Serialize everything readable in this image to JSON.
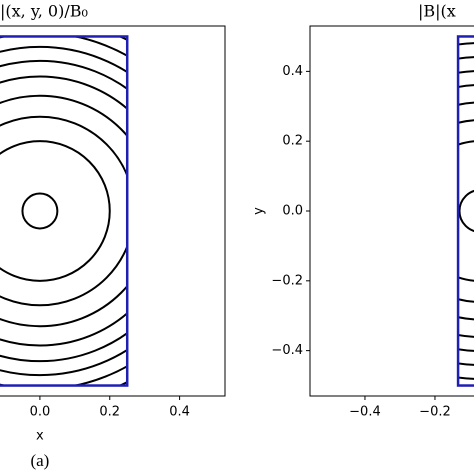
{
  "chart_data": [
    {
      "type": "contour",
      "title": "|(x, y, 0)/B₀",
      "xlabel": "x",
      "caption": "(a)",
      "xlim": [
        -0.12,
        0.53
      ],
      "ylim": [
        -0.53,
        0.53
      ],
      "xticks": [
        {
          "value": 0,
          "label": "0.0"
        },
        {
          "value": 0.2,
          "label": "0.2"
        },
        {
          "value": 0.4,
          "label": "0.4"
        }
      ],
      "region": {
        "x": [
          -0.25,
          0.25
        ],
        "y": [
          -0.5,
          0.5
        ],
        "color": "#1f1fb4"
      },
      "center": [
        0,
        0
      ],
      "radii": [
        0.05,
        0.2,
        0.27,
        0.33,
        0.385,
        0.43,
        0.47,
        0.51,
        0.55,
        0.59,
        0.63
      ],
      "color": "#000000"
    },
    {
      "type": "contour",
      "title": "|B|(x",
      "ylabel": "y",
      "xlim": [
        -0.557,
        0.5
      ],
      "ylim": [
        -0.53,
        0.53
      ],
      "xticks": [
        {
          "value": -0.4,
          "label": "−0.4"
        },
        {
          "value": -0.2,
          "label": "−0.2"
        }
      ],
      "yticks": [
        {
          "value": 0.4,
          "label": "0.4"
        },
        {
          "value": 0.2,
          "label": "0.2"
        },
        {
          "value": 0,
          "label": "0.0"
        },
        {
          "value": -0.2,
          "label": "−0.2"
        },
        {
          "value": -0.4,
          "label": "−0.4"
        }
      ],
      "region": {
        "x": [
          -0.134,
          0.134
        ],
        "y": [
          -0.5,
          0.5
        ],
        "color": "#1f1fb4"
      },
      "center": [
        -0.07,
        0
      ],
      "radii": [
        0.06,
        0.2,
        0.26,
        0.31,
        0.36,
        0.4,
        0.44,
        0.48,
        0.52,
        0.56,
        0.6,
        0.64
      ],
      "color": "#000000"
    }
  ]
}
